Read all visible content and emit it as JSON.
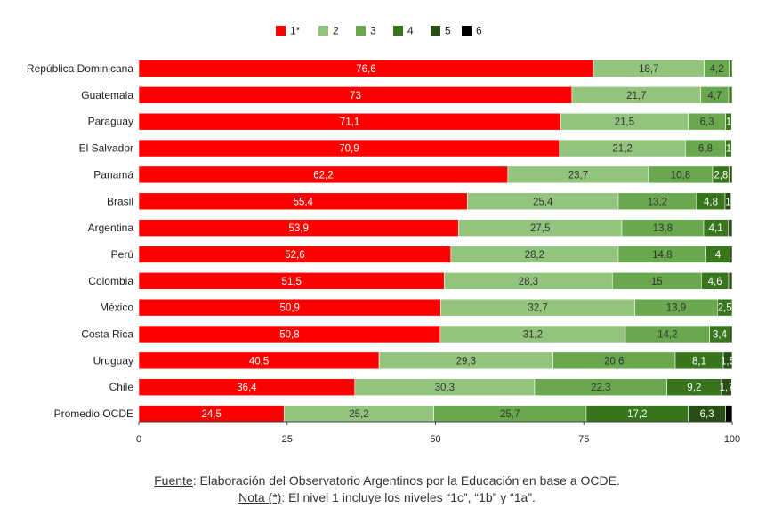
{
  "chart_data": {
    "type": "bar",
    "orientation": "horizontal",
    "stacked": true,
    "categories": [
      "República Dominicana",
      "Guatemala",
      "Paraguay",
      "El Salvador",
      "Panamá",
      "Brasil",
      "Argentina",
      "Perú",
      "Colombia",
      "México",
      "Costa Rica",
      "Uruguay",
      "Chile",
      "Promedio OCDE"
    ],
    "series": [
      {
        "name": "1*",
        "color": "#ff0000",
        "values": [
          76.6,
          73,
          71.1,
          70.9,
          62.2,
          55.4,
          53.9,
          52.6,
          51.5,
          50.9,
          50.8,
          40.5,
          36.4,
          24.5
        ]
      },
      {
        "name": "2",
        "color": "#93c47d",
        "values": [
          18.7,
          21.7,
          21.5,
          21.2,
          23.7,
          25.4,
          27.5,
          28.2,
          28.3,
          32.7,
          31.2,
          29.3,
          30.3,
          25.2
        ]
      },
      {
        "name": "3",
        "color": "#6aa84f",
        "values": [
          4.2,
          4.7,
          6.3,
          6.8,
          10.8,
          13.2,
          13.8,
          14.8,
          15,
          13.9,
          14.2,
          20.6,
          22.3,
          25.7
        ]
      },
      {
        "name": "4",
        "color": "#38761d",
        "values": [
          0.5,
          0.6,
          1,
          1,
          2.8,
          4.8,
          4.1,
          4,
          4.6,
          2.5,
          3.4,
          8.1,
          9.2,
          17.2
        ]
      },
      {
        "name": "5",
        "color": "#274e13",
        "values": [
          0,
          0,
          0,
          0,
          0.5,
          1,
          0.7,
          0.4,
          0.6,
          0,
          0.4,
          1.5,
          1.7,
          6.3
        ]
      },
      {
        "name": "6",
        "color": "#000000",
        "values": [
          0,
          0,
          0,
          0,
          0,
          0,
          0,
          0,
          0,
          0,
          0,
          0,
          0,
          1.1
        ]
      }
    ],
    "data_labels": [
      [
        "76,6",
        "18,7",
        "4,2",
        "",
        "",
        ""
      ],
      [
        "73",
        "21,7",
        "4,7",
        "",
        "",
        ""
      ],
      [
        "71,1",
        "21,5",
        "6,3",
        "1",
        "",
        ""
      ],
      [
        "70,9",
        "21,2",
        "6,8",
        "1",
        "",
        ""
      ],
      [
        "62,2",
        "23,7",
        "10,8",
        "2,8",
        "",
        ""
      ],
      [
        "55,4",
        "25,4",
        "13,2",
        "4,8",
        "1",
        ""
      ],
      [
        "53,9",
        "27,5",
        "13,8",
        "4,1",
        "",
        ""
      ],
      [
        "52,6",
        "28,2",
        "14,8",
        "4",
        "",
        ""
      ],
      [
        "51,5",
        "28,3",
        "15",
        "4,6",
        "",
        ""
      ],
      [
        "50,9",
        "32,7",
        "13,9",
        "2,5",
        "",
        ""
      ],
      [
        "50,8",
        "31,2",
        "14,2",
        "3,4",
        "",
        ""
      ],
      [
        "40,5",
        "29,3",
        "20,6",
        "8,1",
        "1,5",
        ""
      ],
      [
        "36,4",
        "30,3",
        "22,3",
        "9,2",
        "1,7",
        ""
      ],
      [
        "24,5",
        "25,2",
        "25,7",
        "17,2",
        "6,3",
        ""
      ]
    ],
    "xlim": [
      0,
      100
    ],
    "xticks": [
      "0",
      "25",
      "50",
      "75",
      "100"
    ],
    "grid": false,
    "legend_position": "top-center",
    "title": "",
    "xlabel": "",
    "ylabel": ""
  },
  "footer": {
    "fuente_label": "Fuente",
    "fuente_text": ": Elaboración del Observatorio Argentinos por la Educación en base a OCDE.",
    "nota_label": "Nota (*)",
    "nota_text": ": El nivel 1 incluye los niveles “1c”, “1b” y “1a”."
  }
}
